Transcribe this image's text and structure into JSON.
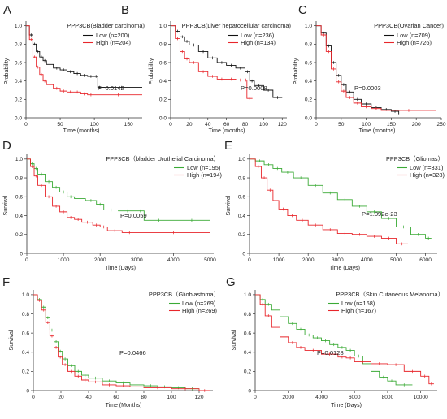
{
  "panels": [
    "A",
    "B",
    "C",
    "D",
    "E",
    "F",
    "G"
  ],
  "colors": {
    "low": "#111111",
    "high": "#e8262b",
    "low_green": "#3aaa35"
  },
  "chart_data": [
    {
      "id": "A",
      "type": "line",
      "title": "PPP3CB(Bladder carcinoma)",
      "xlabel": "Time (months)",
      "ylabel": "Probability",
      "xlim": [
        0,
        170
      ],
      "ylim": [
        0,
        1.05
      ],
      "xticks": [
        0,
        50,
        100,
        150
      ],
      "yticks": [
        0.0,
        0.2,
        0.4,
        0.6,
        0.8,
        1.0
      ],
      "ytick_labels": [
        "0.0",
        "0.2",
        "0.4",
        "0.6",
        "0.8",
        "1.0"
      ],
      "legend_position": "top-right",
      "p_value": "P=0.0142",
      "grid": false,
      "series": [
        {
          "name": "Low (n=200)",
          "color": "#111111",
          "x": [
            0,
            5,
            10,
            15,
            20,
            25,
            30,
            40,
            50,
            60,
            70,
            80,
            90,
            100,
            105,
            110,
            170
          ],
          "y": [
            1.0,
            0.9,
            0.8,
            0.72,
            0.66,
            0.62,
            0.58,
            0.54,
            0.52,
            0.5,
            0.48,
            0.46,
            0.45,
            0.45,
            0.33,
            0.33,
            0.33
          ]
        },
        {
          "name": "High (n=204)",
          "color": "#e8262b",
          "x": [
            0,
            5,
            10,
            15,
            20,
            25,
            30,
            40,
            50,
            60,
            70,
            80,
            90,
            100,
            170
          ],
          "y": [
            1.0,
            0.85,
            0.66,
            0.55,
            0.47,
            0.4,
            0.36,
            0.32,
            0.29,
            0.28,
            0.28,
            0.26,
            0.25,
            0.25,
            0.25
          ]
        }
      ]
    },
    {
      "id": "B",
      "type": "line",
      "title": "PPP3CB(Liver hepatocellular carcinoma)",
      "xlabel": "Time (months)",
      "ylabel": "Probability",
      "xlim": [
        0,
        125
      ],
      "ylim": [
        0,
        1.05
      ],
      "xticks": [
        0,
        20,
        40,
        60,
        80,
        100,
        120
      ],
      "yticks": [
        0.0,
        0.2,
        0.4,
        0.6,
        0.8,
        1.0
      ],
      "ytick_labels": [
        "0.0",
        "0.2",
        "0.4",
        "0.6",
        "0.8",
        "1.0"
      ],
      "legend_position": "top-right",
      "p_value": "P=0.0008",
      "grid": false,
      "series": [
        {
          "name": "Low (n=236)",
          "color": "#111111",
          "x": [
            0,
            5,
            10,
            15,
            20,
            30,
            40,
            50,
            60,
            70,
            80,
            85,
            90,
            100,
            110,
            120
          ],
          "y": [
            1.0,
            0.94,
            0.88,
            0.83,
            0.79,
            0.72,
            0.65,
            0.6,
            0.57,
            0.54,
            0.5,
            0.4,
            0.35,
            0.3,
            0.22,
            0.22
          ]
        },
        {
          "name": "High (n=134)",
          "color": "#e8262b",
          "x": [
            0,
            5,
            10,
            15,
            20,
            30,
            40,
            50,
            60,
            70,
            80,
            82,
            88
          ],
          "y": [
            1.0,
            0.86,
            0.72,
            0.64,
            0.6,
            0.5,
            0.45,
            0.42,
            0.42,
            0.41,
            0.41,
            0.21,
            0.21
          ]
        }
      ]
    },
    {
      "id": "C",
      "type": "line",
      "title": "PPP3CB(Ovarian Cancer)",
      "xlabel": "Time (months)",
      "ylabel": "Probability",
      "xlim": [
        0,
        250
      ],
      "ylim": [
        0,
        1.05
      ],
      "xticks": [
        0,
        50,
        100,
        150,
        200,
        250
      ],
      "yticks": [
        0.0,
        0.2,
        0.4,
        0.6,
        0.8,
        1.0
      ],
      "ytick_labels": [
        "0.0",
        "0.2",
        "0.4",
        "0.6",
        "0.8",
        "1.0"
      ],
      "legend_position": "top-right",
      "p_value": "P=0.0003",
      "grid": false,
      "series": [
        {
          "name": "Low (n=709)",
          "color": "#111111",
          "x": [
            0,
            10,
            20,
            30,
            40,
            50,
            60,
            75,
            90,
            110,
            130,
            150,
            165
          ],
          "y": [
            1.0,
            0.92,
            0.78,
            0.6,
            0.46,
            0.36,
            0.28,
            0.2,
            0.15,
            0.11,
            0.09,
            0.07,
            0.03
          ]
        },
        {
          "name": "High (n=726)",
          "color": "#e8262b",
          "x": [
            0,
            10,
            20,
            30,
            40,
            50,
            60,
            75,
            90,
            110,
            130,
            240
          ],
          "y": [
            1.0,
            0.9,
            0.72,
            0.53,
            0.39,
            0.29,
            0.22,
            0.16,
            0.12,
            0.1,
            0.08,
            0.08
          ]
        }
      ]
    },
    {
      "id": "D",
      "type": "line",
      "title": "PPP3CB（bladder Urothelial Carcinoma）",
      "xlabel": "Time (Days)",
      "ylabel": "Survival",
      "xlim": [
        0,
        5100
      ],
      "ylim": [
        0,
        1.05
      ],
      "xticks": [
        0,
        1000,
        2000,
        3000,
        4000,
        5000
      ],
      "yticks": [
        0,
        0.2,
        0.4,
        0.6,
        0.8,
        1.0
      ],
      "ytick_labels": [
        "0",
        "0.2",
        "0.4",
        "0.6",
        "0.8",
        "1.0"
      ],
      "legend_position": "top-right",
      "p_value": "P=0.0059",
      "grid": false,
      "series": [
        {
          "name": "Low (n=195)",
          "color": "#3aaa35",
          "x": [
            0,
            100,
            200,
            300,
            500,
            700,
            900,
            1100,
            1300,
            1600,
            1900,
            2100,
            2500,
            3000,
            3200,
            4000,
            5000
          ],
          "y": [
            1.0,
            0.95,
            0.9,
            0.84,
            0.76,
            0.7,
            0.65,
            0.6,
            0.58,
            0.56,
            0.52,
            0.46,
            0.45,
            0.45,
            0.35,
            0.35,
            0.35
          ]
        },
        {
          "name": "High (n=194)",
          "color": "#e8262b",
          "x": [
            0,
            100,
            200,
            300,
            500,
            700,
            900,
            1100,
            1300,
            1500,
            1800,
            2000,
            2200,
            2600,
            3000,
            5000
          ],
          "y": [
            1.0,
            0.92,
            0.82,
            0.72,
            0.6,
            0.5,
            0.44,
            0.38,
            0.36,
            0.33,
            0.3,
            0.28,
            0.24,
            0.22,
            0.22,
            0.22
          ]
        }
      ]
    },
    {
      "id": "E",
      "type": "line",
      "title": "PPP3CB（Gliomas）",
      "xlabel": "Time (Days)",
      "ylabel": "Survival",
      "xlim": [
        0,
        6400
      ],
      "ylim": [
        0,
        1.05
      ],
      "xticks": [
        0,
        1000,
        2000,
        3000,
        4000,
        5000,
        6000
      ],
      "yticks": [
        0,
        0.2,
        0.4,
        0.6,
        0.8,
        1.0
      ],
      "ytick_labels": [
        "0",
        "0.2",
        "0.4",
        "0.6",
        "0.8",
        "1.0"
      ],
      "legend_position": "top-right",
      "p_value": "P=1.092e-23",
      "grid": false,
      "series": [
        {
          "name": "Low (n=331)",
          "color": "#3aaa35",
          "x": [
            0,
            200,
            500,
            800,
            1100,
            1500,
            2000,
            2500,
            3000,
            3500,
            4000,
            4500,
            5000,
            5500,
            6000,
            6200
          ],
          "y": [
            1.0,
            0.98,
            0.94,
            0.9,
            0.86,
            0.8,
            0.72,
            0.64,
            0.57,
            0.5,
            0.44,
            0.37,
            0.28,
            0.2,
            0.16,
            0.16
          ]
        },
        {
          "name": "High (n=328)",
          "color": "#e8262b",
          "x": [
            0,
            200,
            400,
            600,
            800,
            1000,
            1300,
            1600,
            2000,
            2500,
            3000,
            3500,
            4000,
            4500,
            5000,
            5400
          ],
          "y": [
            1.0,
            0.92,
            0.8,
            0.67,
            0.56,
            0.47,
            0.4,
            0.35,
            0.3,
            0.25,
            0.21,
            0.2,
            0.18,
            0.16,
            0.1,
            0.1
          ]
        }
      ]
    },
    {
      "id": "F",
      "type": "line",
      "title": "PPP3CB（Glioblastoma）",
      "xlabel": "Time (Months)",
      "ylabel": "Survival",
      "xlim": [
        0,
        130
      ],
      "ylim": [
        0,
        1.05
      ],
      "xticks": [
        0,
        20,
        40,
        60,
        80,
        100,
        120
      ],
      "yticks": [
        0,
        0.2,
        0.4,
        0.6,
        0.8,
        1.0
      ],
      "ytick_labels": [
        "0",
        "0.2",
        "0.4",
        "0.6",
        "0.8",
        "1.0"
      ],
      "legend_position": "top-right",
      "p_value": "P=0.0466",
      "grid": false,
      "series": [
        {
          "name": "Low (n=269)",
          "color": "#3aaa35",
          "x": [
            0,
            3,
            6,
            9,
            12,
            15,
            18,
            21,
            25,
            30,
            35,
            40,
            50,
            60,
            70,
            80,
            90,
            100,
            110,
            120
          ],
          "y": [
            1.0,
            0.95,
            0.87,
            0.76,
            0.63,
            0.51,
            0.41,
            0.33,
            0.26,
            0.2,
            0.16,
            0.13,
            0.1,
            0.08,
            0.06,
            0.05,
            0.04,
            0.03,
            0.02,
            0.02
          ]
        },
        {
          "name": "High (n=269)",
          "color": "#e8262b",
          "x": [
            0,
            3,
            6,
            9,
            12,
            15,
            18,
            21,
            25,
            30,
            35,
            40,
            50,
            60,
            70,
            80,
            100,
            120,
            128
          ],
          "y": [
            1.0,
            0.94,
            0.84,
            0.71,
            0.57,
            0.45,
            0.35,
            0.27,
            0.2,
            0.15,
            0.11,
            0.09,
            0.06,
            0.05,
            0.04,
            0.03,
            0.02,
            0.0,
            0.0
          ]
        }
      ]
    },
    {
      "id": "G",
      "type": "line",
      "title": "PPP3CB（Skin Cutaneous Melanoma）",
      "xlabel": "Time (Days)",
      "ylabel": "Survival",
      "xlim": [
        0,
        11000
      ],
      "ylim": [
        0,
        1.05
      ],
      "xticks": [
        0,
        2000,
        4000,
        6000,
        8000,
        10000
      ],
      "yticks": [
        0,
        0.2,
        0.4,
        0.6,
        0.8,
        1.0
      ],
      "ytick_labels": [
        "0",
        "0.2",
        "0.4",
        "0.6",
        "0.8",
        "1.0"
      ],
      "legend_position": "top-right",
      "p_value": "P=0.0128",
      "grid": false,
      "series": [
        {
          "name": "Low (n=168)",
          "color": "#3aaa35",
          "x": [
            0,
            300,
            600,
            1000,
            1500,
            2000,
            2500,
            3000,
            3500,
            4000,
            4500,
            5000,
            5500,
            6000,
            6500,
            7000,
            7500,
            8000,
            8500,
            9500
          ],
          "y": [
            1.0,
            0.95,
            0.9,
            0.84,
            0.77,
            0.7,
            0.64,
            0.58,
            0.55,
            0.52,
            0.48,
            0.45,
            0.42,
            0.36,
            0.28,
            0.2,
            0.14,
            0.1,
            0.06,
            0.06
          ]
        },
        {
          "name": "High (n=167)",
          "color": "#e8262b",
          "x": [
            0,
            300,
            600,
            1000,
            1500,
            2000,
            2500,
            3000,
            4000,
            5000,
            5500,
            6000,
            7000,
            8000,
            9000,
            10000,
            10500,
            10800
          ],
          "y": [
            1.0,
            0.9,
            0.78,
            0.66,
            0.56,
            0.5,
            0.45,
            0.42,
            0.38,
            0.35,
            0.34,
            0.3,
            0.28,
            0.27,
            0.2,
            0.15,
            0.07,
            0.07
          ]
        }
      ]
    }
  ]
}
